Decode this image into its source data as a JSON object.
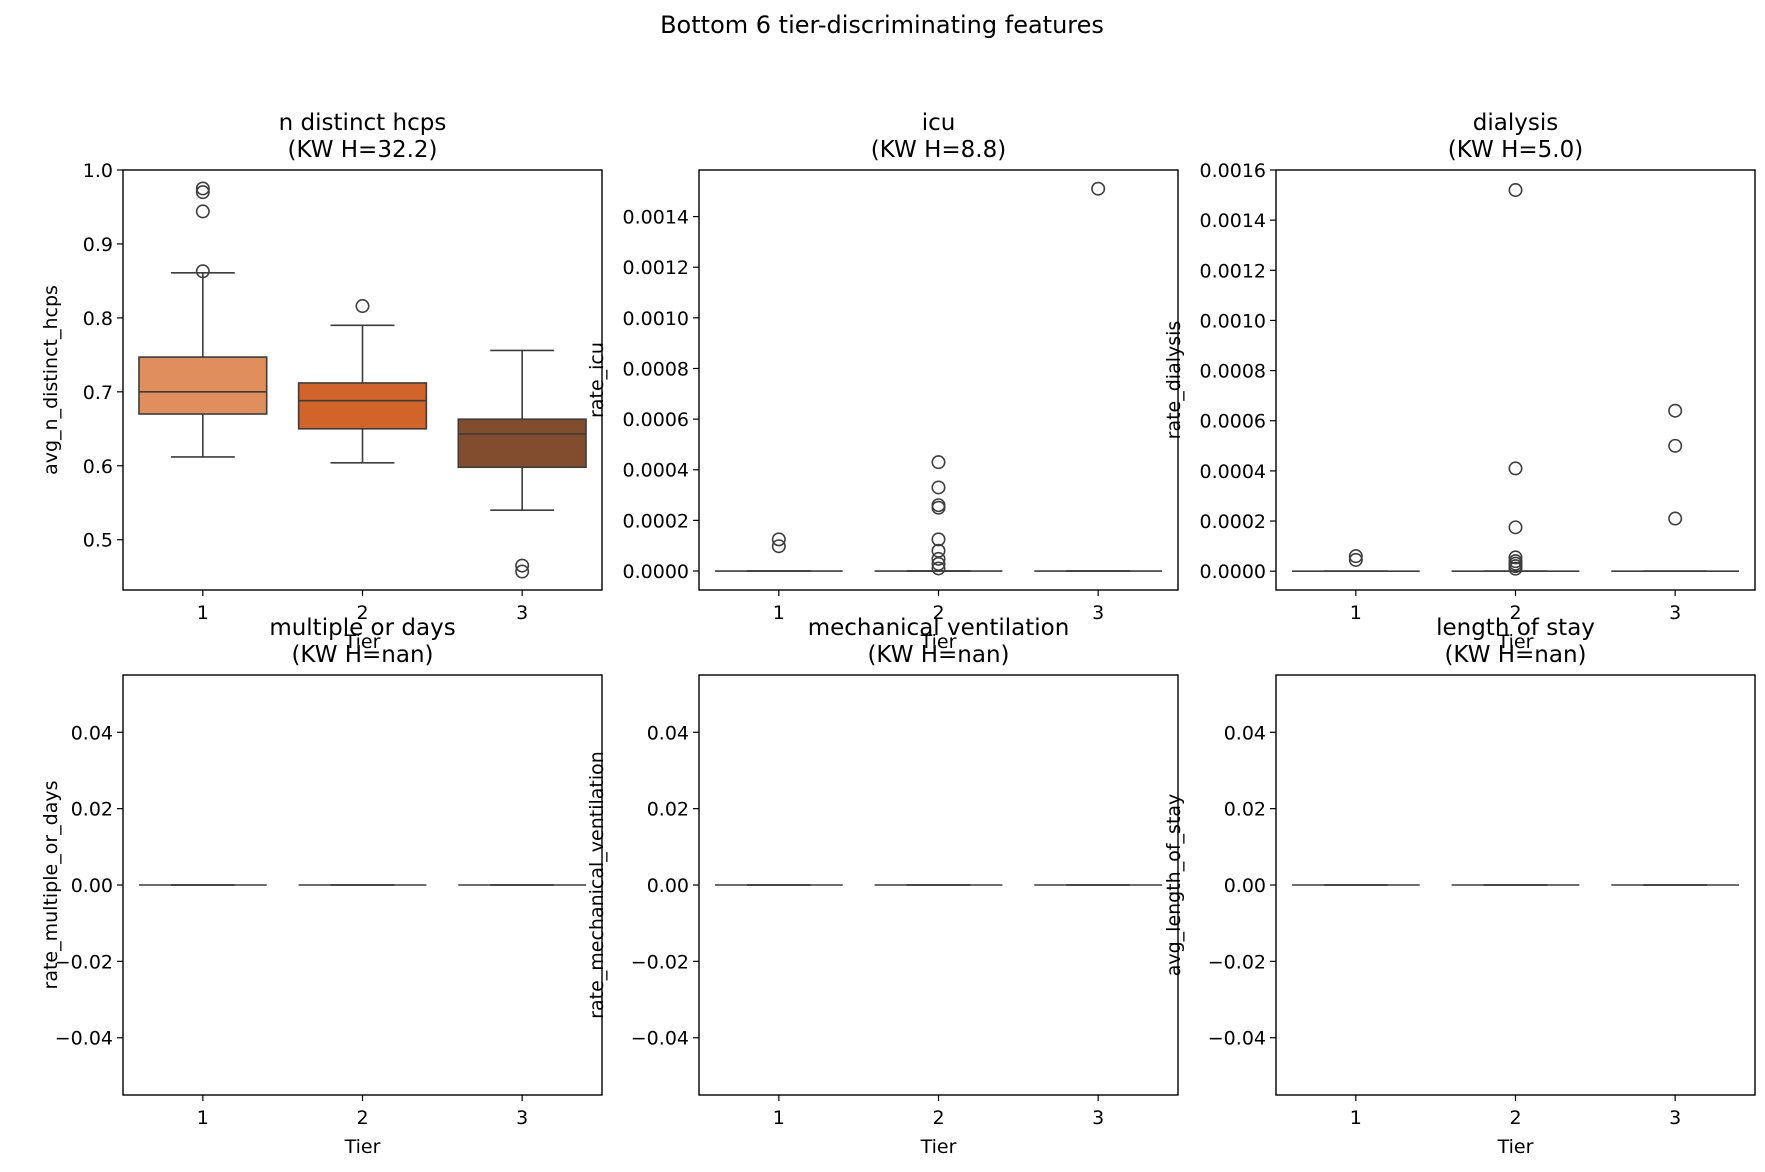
{
  "figure": {
    "title": "Bottom 6 tier-discriminating features"
  },
  "chart_data": [
    {
      "type": "box",
      "title": "n distinct hcps",
      "subtitle": "(KW H=32.2)",
      "xlabel": "Tier",
      "ylabel": "avg_n_distinct_hcps",
      "categories": [
        "1",
        "2",
        "3"
      ],
      "ylim": [
        0.432,
        1.0
      ],
      "yticks": [
        0.5,
        0.6,
        0.7,
        0.8,
        0.9,
        1.0
      ],
      "ytick_labels": [
        "0.5",
        "0.6",
        "0.7",
        "0.8",
        "0.9",
        "1.0"
      ],
      "boxes": [
        {
          "tier": "1",
          "whisker_low": 0.612,
          "q1": 0.67,
          "median": 0.7,
          "q3": 0.747,
          "whisker_high": 0.861,
          "fliers": [
            0.975,
            0.97,
            0.944,
            0.863
          ],
          "color": "#e08f5c"
        },
        {
          "tier": "2",
          "whisker_low": 0.604,
          "q1": 0.65,
          "median": 0.688,
          "q3": 0.712,
          "whisker_high": 0.79,
          "fliers": [
            0.816
          ],
          "color": "#d2642a"
        },
        {
          "tier": "3",
          "whisker_low": 0.54,
          "q1": 0.598,
          "median": 0.643,
          "q3": 0.663,
          "whisker_high": 0.756,
          "fliers": [
            0.465,
            0.457
          ],
          "color": "#824c2e"
        }
      ]
    },
    {
      "type": "box",
      "title": "icu",
      "subtitle": "(KW H=8.8)",
      "xlabel": "Tier",
      "ylabel": "rate_icu",
      "categories": [
        "1",
        "2",
        "3"
      ],
      "ylim": [
        -7.5e-05,
        0.001584
      ],
      "yticks": [
        0,
        0.0002,
        0.0004,
        0.0006,
        0.0008,
        0.001,
        0.0012,
        0.0014
      ],
      "ytick_labels": [
        "0.0000",
        "0.0002",
        "0.0004",
        "0.0006",
        "0.0008",
        "0.0010",
        "0.0012",
        "0.0014"
      ],
      "boxes": [
        {
          "tier": "1",
          "whisker_low": 0,
          "q1": 0,
          "median": 0,
          "q3": 0,
          "whisker_high": 0,
          "fliers": [
            0.000125,
            9.8e-05
          ],
          "color": "#e08f5c"
        },
        {
          "tier": "2",
          "whisker_low": 0,
          "q1": 0,
          "median": 0,
          "q3": 0,
          "whisker_high": 0,
          "fliers": [
            0.00043,
            0.00033,
            0.00026,
            0.00025,
            0.000125,
            8e-05,
            4.8e-05,
            2.8e-05,
            1e-05
          ],
          "color": "#d2642a"
        },
        {
          "tier": "3",
          "whisker_low": 0,
          "q1": 0,
          "median": 0,
          "q3": 0,
          "whisker_high": 0,
          "fliers": [
            0.00151
          ],
          "color": "#824c2e"
        }
      ]
    },
    {
      "type": "box",
      "title": "dialysis",
      "subtitle": "(KW H=5.0)",
      "xlabel": "Tier",
      "ylabel": "rate_dialysis",
      "categories": [
        "1",
        "2",
        "3"
      ],
      "ylim": [
        -7.5e-05,
        0.0016
      ],
      "yticks": [
        0,
        0.0002,
        0.0004,
        0.0006,
        0.0008,
        0.001,
        0.0012,
        0.0014,
        0.0016
      ],
      "ytick_labels": [
        "0.0000",
        "0.0002",
        "0.0004",
        "0.0006",
        "0.0008",
        "0.0010",
        "0.0012",
        "0.0014",
        "0.0016"
      ],
      "boxes": [
        {
          "tier": "1",
          "whisker_low": 0,
          "q1": 0,
          "median": 0,
          "q3": 0,
          "whisker_high": 0,
          "fliers": [
            6e-05,
            4.5e-05
          ],
          "color": "#e08f5c"
        },
        {
          "tier": "2",
          "whisker_low": 0,
          "q1": 0,
          "median": 0,
          "q3": 0,
          "whisker_high": 0,
          "fliers": [
            0.00152,
            0.00041,
            0.000175,
            5.5e-05,
            4e-05,
            3e-05,
            2e-05,
            1e-05
          ],
          "color": "#d2642a"
        },
        {
          "tier": "3",
          "whisker_low": 0,
          "q1": 0,
          "median": 0,
          "q3": 0,
          "whisker_high": 0,
          "fliers": [
            0.00064,
            0.0005,
            0.00021
          ],
          "color": "#824c2e"
        }
      ]
    },
    {
      "type": "box",
      "title": "multiple or days",
      "subtitle": "(KW H=nan)",
      "xlabel": "Tier",
      "ylabel": "rate_multiple_or_days",
      "categories": [
        "1",
        "2",
        "3"
      ],
      "ylim": [
        -0.055,
        0.055
      ],
      "yticks": [
        -0.04,
        -0.02,
        0,
        0.02,
        0.04
      ],
      "ytick_labels": [
        "−0.04",
        "−0.02",
        "0.00",
        "0.02",
        "0.04"
      ],
      "boxes": [
        {
          "tier": "1",
          "whisker_low": 0,
          "q1": 0,
          "median": 0,
          "q3": 0,
          "whisker_high": 0,
          "fliers": [],
          "color": "#e08f5c"
        },
        {
          "tier": "2",
          "whisker_low": 0,
          "q1": 0,
          "median": 0,
          "q3": 0,
          "whisker_high": 0,
          "fliers": [],
          "color": "#d2642a"
        },
        {
          "tier": "3",
          "whisker_low": 0,
          "q1": 0,
          "median": 0,
          "q3": 0,
          "whisker_high": 0,
          "fliers": [],
          "color": "#824c2e"
        }
      ]
    },
    {
      "type": "box",
      "title": "mechanical ventilation",
      "subtitle": "(KW H=nan)",
      "xlabel": "Tier",
      "ylabel": "rate_mechanical_ventilation",
      "categories": [
        "1",
        "2",
        "3"
      ],
      "ylim": [
        -0.055,
        0.055
      ],
      "yticks": [
        -0.04,
        -0.02,
        0,
        0.02,
        0.04
      ],
      "ytick_labels": [
        "−0.04",
        "−0.02",
        "0.00",
        "0.02",
        "0.04"
      ],
      "boxes": [
        {
          "tier": "1",
          "whisker_low": 0,
          "q1": 0,
          "median": 0,
          "q3": 0,
          "whisker_high": 0,
          "fliers": [],
          "color": "#e08f5c"
        },
        {
          "tier": "2",
          "whisker_low": 0,
          "q1": 0,
          "median": 0,
          "q3": 0,
          "whisker_high": 0,
          "fliers": [],
          "color": "#d2642a"
        },
        {
          "tier": "3",
          "whisker_low": 0,
          "q1": 0,
          "median": 0,
          "q3": 0,
          "whisker_high": 0,
          "fliers": [],
          "color": "#824c2e"
        }
      ]
    },
    {
      "type": "box",
      "title": "length of stay",
      "subtitle": "(KW H=nan)",
      "xlabel": "Tier",
      "ylabel": "avg_length_of_stay",
      "categories": [
        "1",
        "2",
        "3"
      ],
      "ylim": [
        -0.055,
        0.055
      ],
      "yticks": [
        -0.04,
        -0.02,
        0,
        0.02,
        0.04
      ],
      "ytick_labels": [
        "−0.04",
        "−0.02",
        "0.00",
        "0.02",
        "0.04"
      ],
      "boxes": [
        {
          "tier": "1",
          "whisker_low": 0,
          "q1": 0,
          "median": 0,
          "q3": 0,
          "whisker_high": 0,
          "fliers": [],
          "color": "#e08f5c"
        },
        {
          "tier": "2",
          "whisker_low": 0,
          "q1": 0,
          "median": 0,
          "q3": 0,
          "whisker_high": 0,
          "fliers": [],
          "color": "#d2642a"
        },
        {
          "tier": "3",
          "whisker_low": 0,
          "q1": 0,
          "median": 0,
          "q3": 0,
          "whisker_high": 0,
          "fliers": [],
          "color": "#824c2e"
        }
      ]
    }
  ]
}
